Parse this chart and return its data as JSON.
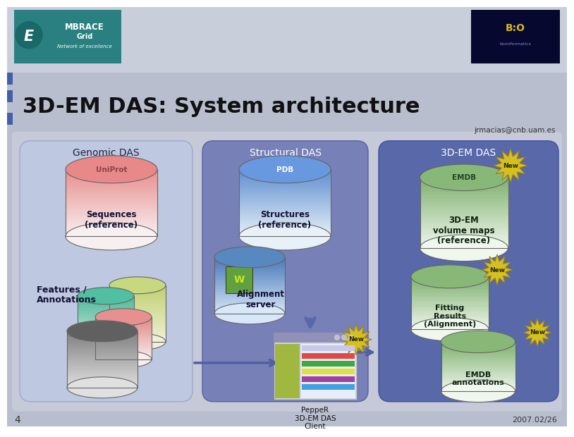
{
  "title": "3D-EM DAS: System architecture",
  "email": "jrmacias@cnb.uam.es",
  "slide_bg": "#b8bece",
  "header_bg": "#c5cad8",
  "title_color": "#1a1a1a",
  "left_bar_color": "#4a6aaa",
  "slide_number": "4",
  "date": "2007.02/26",
  "genomic_label": "Genomic DAS",
  "structural_label": "Structural DAS",
  "em_label": "3D-EM DAS",
  "sequences_label": "Sequences\n(reference)",
  "structures_label": "Structures\n(reference)",
  "em_volume_label": "3D-EM\nvolume maps\n(reference)",
  "features_label": "Features /\nAnnotations",
  "alignment_label": "Alignment\nserver",
  "fitting_label": "Fitting\nResults\n(Alignment)",
  "emdb_annot_label": "EMDB\nannotations",
  "pepper_label": "PeppeR\n3D-EM DAS\nClient",
  "new_color": "#d4c020",
  "arrow_color": "#5060a0"
}
